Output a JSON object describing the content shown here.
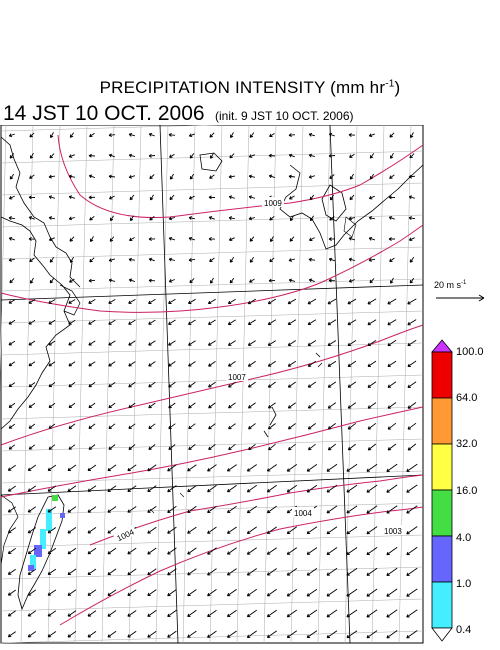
{
  "title": {
    "main_text": "PRECIPITATION INTENSITY (mm hr",
    "unit_exponent": "-1",
    "close_paren": ")"
  },
  "subtitle": {
    "valid_time": "14 JST 10 OCT. 2006",
    "init_time": "(init. 9 JST 10 OCT. 2006)"
  },
  "wind_scale": {
    "label": "20 m s",
    "exponent": "-1"
  },
  "isobar_labels": [
    "1009",
    "1007",
    "1004",
    "1004",
    "1003"
  ],
  "colorbar": {
    "levels": [
      "100.0",
      "64.0",
      "32.0",
      "16.0",
      "4.0",
      "1.0",
      "0.4"
    ],
    "colors": [
      "#ee0000",
      "#ff9933",
      "#ffff44",
      "#44dd44",
      "#6666ff",
      "#44eeff"
    ],
    "top_triangle_color": "#cc33ff",
    "bottom_triangle_color": "#ffffff"
  },
  "styles": {
    "isobar_color": "#cc2266",
    "grid_color": "#aaaaaa",
    "coast_color": "#000000"
  }
}
